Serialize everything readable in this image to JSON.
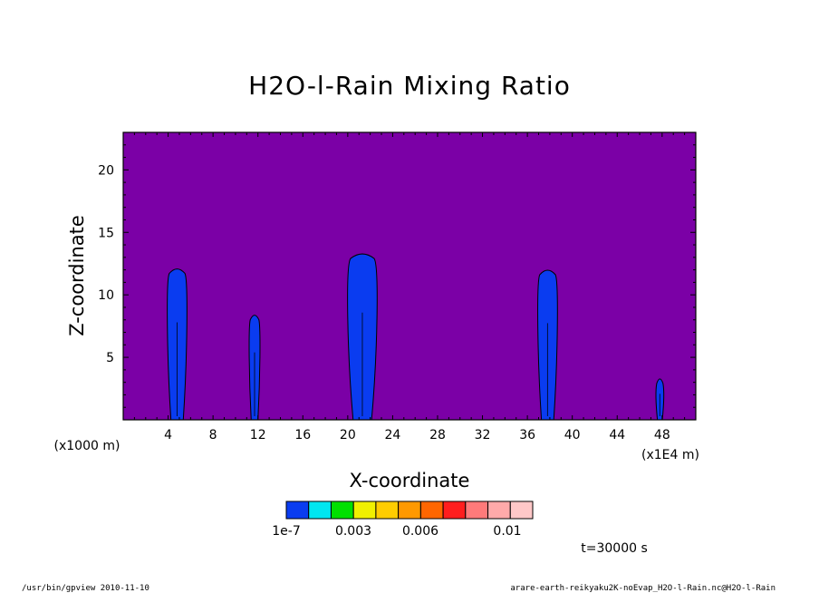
{
  "chart_data": {
    "type": "heatmap",
    "title": "H2O-l-Rain Mixing Ratio",
    "xlabel": "X-coordinate",
    "ylabel": "Z-coordinate",
    "x_unit_left": "(x1000 m)",
    "x_unit_right": "(x1E4 m)",
    "xlim": [
      0,
      51
    ],
    "ylim": [
      0,
      23
    ],
    "x_ticks": [
      4,
      8,
      12,
      16,
      20,
      24,
      28,
      32,
      36,
      40,
      44,
      48
    ],
    "y_ticks": [
      5,
      10,
      15,
      20
    ],
    "background_color": "#7b00a6",
    "cells": [
      {
        "center_x": 4.8,
        "width": 2.0,
        "top": 12.0,
        "color": "#0a3cf0"
      },
      {
        "center_x": 11.7,
        "width": 1.1,
        "top": 8.3,
        "color": "#0a3cf0"
      },
      {
        "center_x": 21.3,
        "width": 3.0,
        "top": 13.2,
        "color": "#0a3cf0"
      },
      {
        "center_x": 37.8,
        "width": 2.0,
        "top": 11.9,
        "color": "#0a3cf0"
      },
      {
        "center_x": 47.8,
        "width": 0.8,
        "top": 3.2,
        "color": "#0a3cf0"
      }
    ],
    "colorbar": {
      "colors": [
        "#0a3cf0",
        "#00e6f0",
        "#00e000",
        "#f0f000",
        "#ffcc00",
        "#ff9900",
        "#ff6600",
        "#ff1e1e",
        "#ff7a7a",
        "#ffaaaa",
        "#ffc8c8"
      ],
      "labels": [
        "1e-7",
        "0.003",
        "0.006",
        "0.01"
      ]
    },
    "time_label": "t=30000 s"
  },
  "footer": {
    "left": "/usr/bin/gpview  2010-11-10",
    "right": "arare-earth-reikyaku2K-noEvap_H2O-l-Rain.nc@H2O-l-Rain"
  }
}
